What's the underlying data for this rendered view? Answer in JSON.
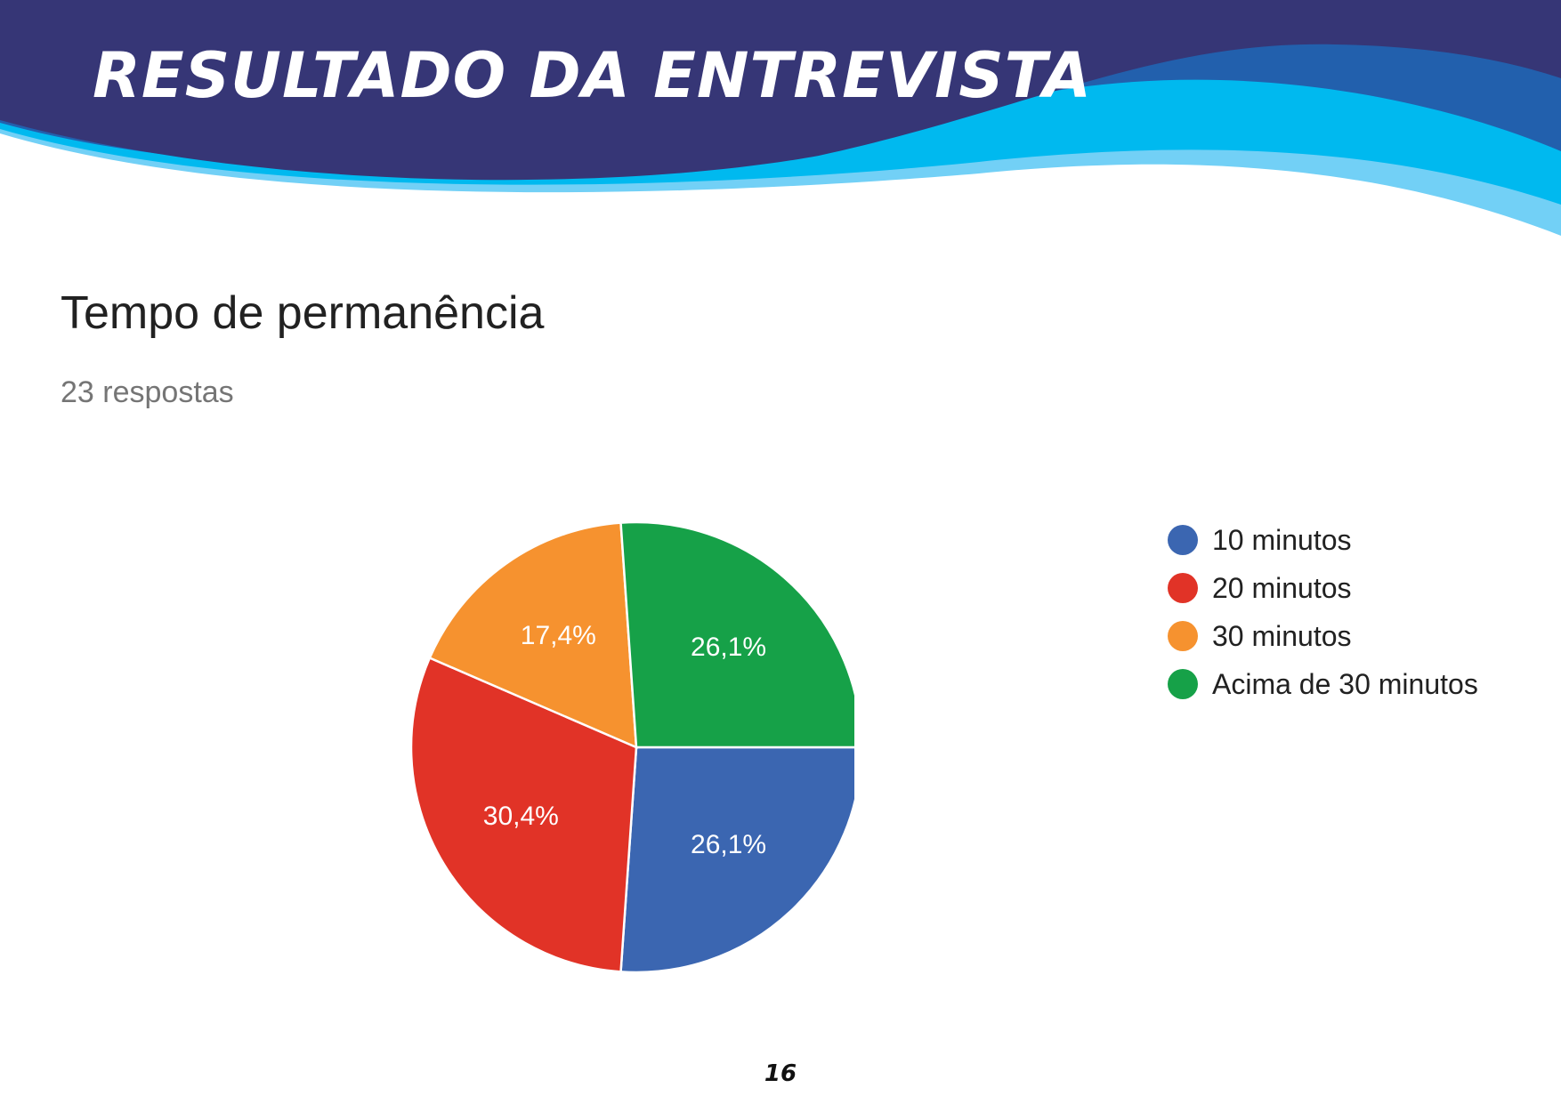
{
  "header": {
    "title": "RESULTADO DA ENTREVISTA",
    "colors": {
      "dark": "#363676",
      "mid": "#2260ad",
      "cyan": "#00b9ef",
      "light": "#72d0f6"
    }
  },
  "chart_data": {
    "type": "pie",
    "title": "Tempo de permanência",
    "subtitle": "23 respostas",
    "legend_position": "right",
    "slices": [
      {
        "label": "10 minutos",
        "value": 26.1,
        "display": "26,1%",
        "color": "#3b66b1"
      },
      {
        "label": "20 minutos",
        "value": 30.4,
        "display": "30,4%",
        "color": "#e13327"
      },
      {
        "label": "30 minutos",
        "value": 17.4,
        "display": "17,4%",
        "color": "#f6922f"
      },
      {
        "label": "Acima de 30 minutos",
        "value": 26.1,
        "display": "26,1%",
        "color": "#16a148"
      }
    ]
  },
  "page": {
    "number": "16"
  }
}
